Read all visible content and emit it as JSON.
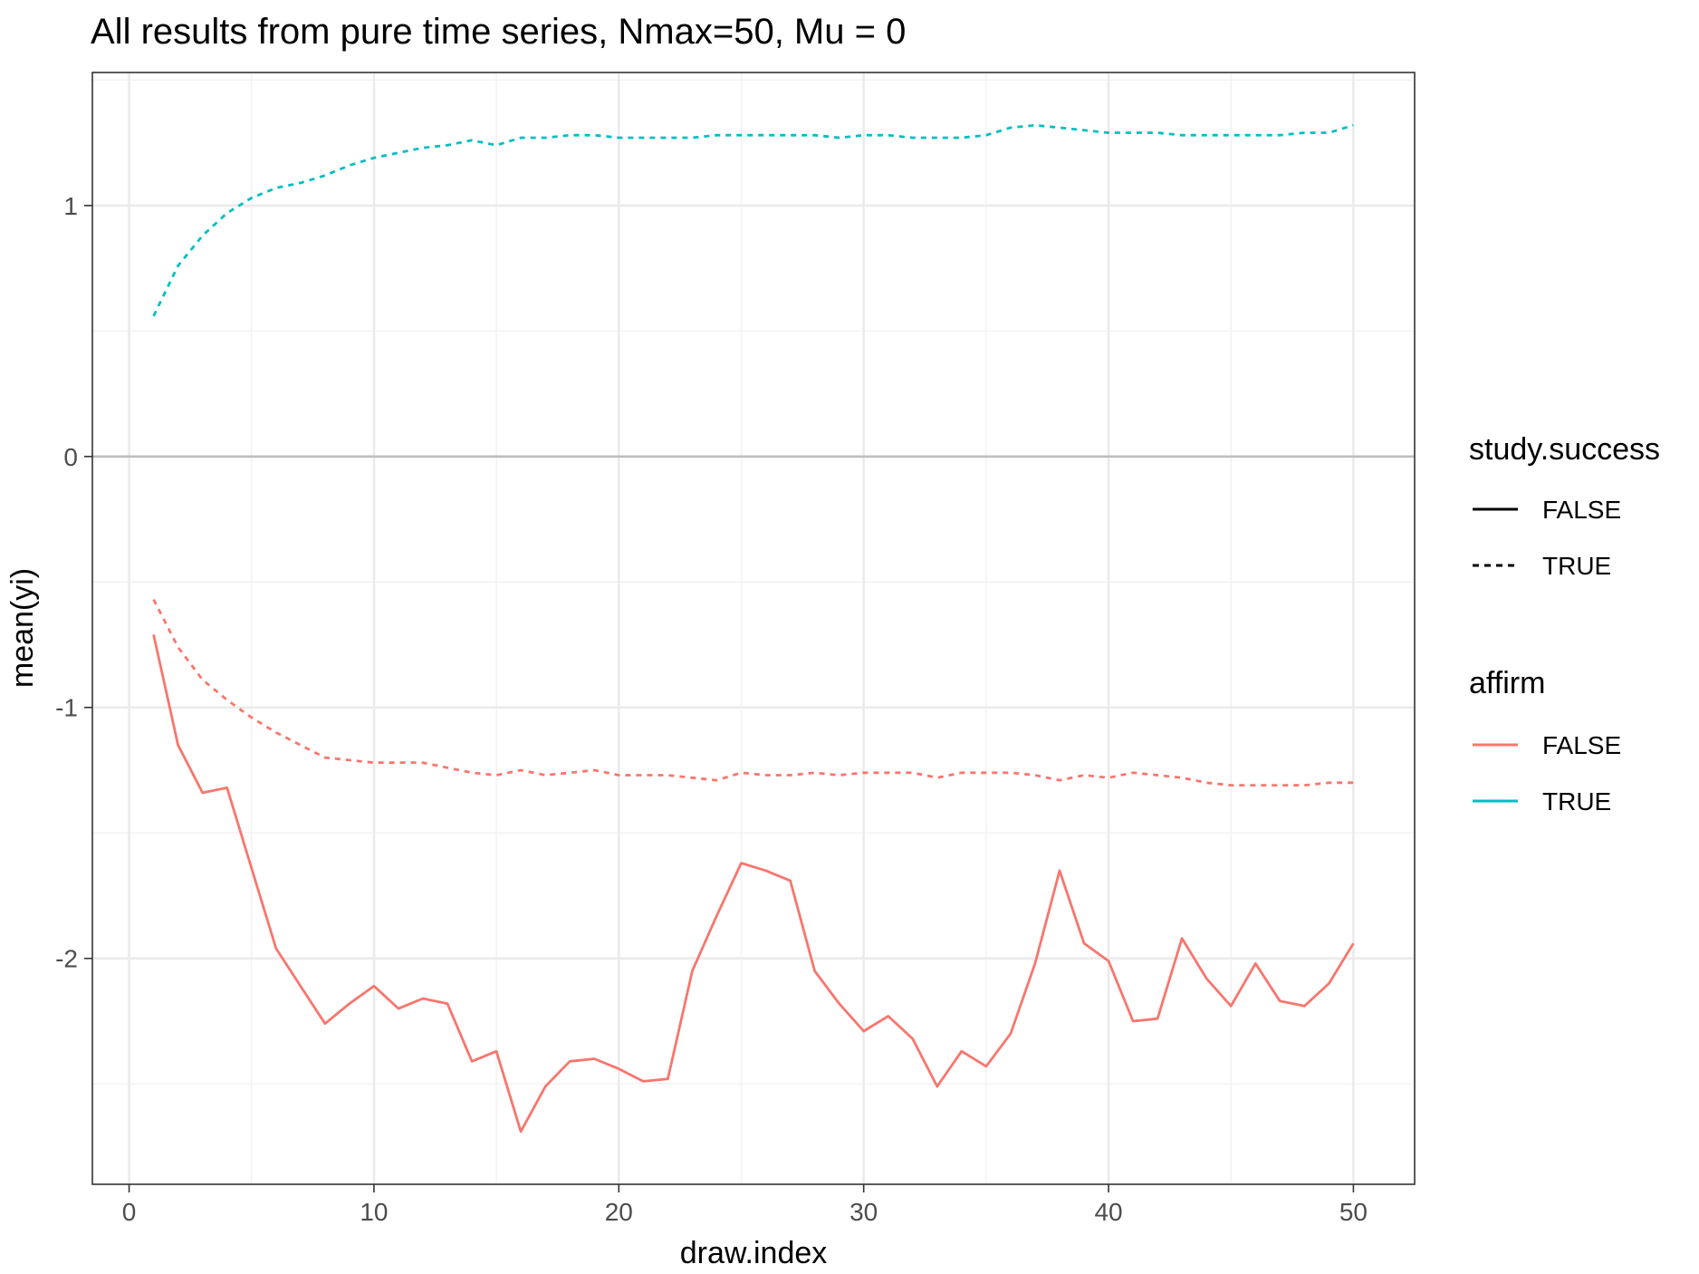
{
  "chart_data": {
    "type": "line",
    "title": "All results from pure time series, Nmax=50, Mu = 0",
    "xlabel": "draw.index",
    "ylabel": "mean(yi)",
    "xlim": [
      -1.5,
      52.5
    ],
    "ylim": [
      -2.9,
      1.53
    ],
    "x_ticks": [
      0,
      10,
      20,
      30,
      40,
      50
    ],
    "y_ticks": [
      -2,
      -1,
      0,
      1
    ],
    "x_tick_labels": [
      "0",
      "10",
      "20",
      "30",
      "40",
      "50"
    ],
    "y_tick_labels": [
      "-2",
      "-1",
      "0",
      "1"
    ],
    "hline": 0,
    "grid": true,
    "legend_position": "right",
    "legends": [
      {
        "title": "study.success",
        "entries": [
          {
            "label": "FALSE",
            "linetype": "solid"
          },
          {
            "label": "TRUE",
            "linetype": "dashed"
          }
        ]
      },
      {
        "title": "affirm",
        "entries": [
          {
            "label": "FALSE",
            "color": "#F8766D"
          },
          {
            "label": "TRUE",
            "color": "#00BFC4"
          }
        ]
      }
    ],
    "series": [
      {
        "affirm": "TRUE",
        "study_success": "TRUE",
        "color": "#00BFC4",
        "linetype": "dashed",
        "x": [
          1,
          2,
          3,
          4,
          5,
          6,
          7,
          8,
          9,
          10,
          11,
          12,
          13,
          14,
          15,
          16,
          17,
          18,
          19,
          20,
          21,
          22,
          23,
          24,
          25,
          26,
          27,
          28,
          29,
          30,
          31,
          32,
          33,
          34,
          35,
          36,
          37,
          38,
          39,
          40,
          41,
          42,
          43,
          44,
          45,
          46,
          47,
          48,
          49,
          50
        ],
        "values": [
          0.56,
          0.76,
          0.88,
          0.97,
          1.03,
          1.07,
          1.09,
          1.12,
          1.16,
          1.19,
          1.21,
          1.23,
          1.24,
          1.26,
          1.24,
          1.27,
          1.27,
          1.28,
          1.28,
          1.27,
          1.27,
          1.27,
          1.27,
          1.28,
          1.28,
          1.28,
          1.28,
          1.28,
          1.27,
          1.28,
          1.28,
          1.27,
          1.27,
          1.27,
          1.28,
          1.31,
          1.32,
          1.31,
          1.3,
          1.29,
          1.29,
          1.29,
          1.28,
          1.28,
          1.28,
          1.28,
          1.28,
          1.29,
          1.29,
          1.32
        ]
      },
      {
        "affirm": "FALSE",
        "study_success": "TRUE",
        "color": "#F8766D",
        "linetype": "dashed",
        "x": [
          1,
          2,
          3,
          4,
          5,
          6,
          7,
          8,
          9,
          10,
          11,
          12,
          13,
          14,
          15,
          16,
          17,
          18,
          19,
          20,
          21,
          22,
          23,
          24,
          25,
          26,
          27,
          28,
          29,
          30,
          31,
          32,
          33,
          34,
          35,
          36,
          37,
          38,
          39,
          40,
          41,
          42,
          43,
          44,
          45,
          46,
          47,
          48,
          49,
          50
        ],
        "values": [
          -0.57,
          -0.76,
          -0.89,
          -0.97,
          -1.04,
          -1.1,
          -1.15,
          -1.2,
          -1.21,
          -1.22,
          -1.22,
          -1.22,
          -1.24,
          -1.26,
          -1.27,
          -1.25,
          -1.27,
          -1.26,
          -1.25,
          -1.27,
          -1.27,
          -1.27,
          -1.28,
          -1.29,
          -1.26,
          -1.27,
          -1.27,
          -1.26,
          -1.27,
          -1.26,
          -1.26,
          -1.26,
          -1.28,
          -1.26,
          -1.26,
          -1.26,
          -1.27,
          -1.29,
          -1.27,
          -1.28,
          -1.26,
          -1.27,
          -1.28,
          -1.3,
          -1.31,
          -1.31,
          -1.31,
          -1.31,
          -1.3,
          -1.3
        ]
      },
      {
        "affirm": "FALSE",
        "study_success": "FALSE",
        "color": "#F8766D",
        "linetype": "solid",
        "x": [
          1,
          2,
          3,
          4,
          5,
          6,
          7,
          8,
          9,
          10,
          11,
          12,
          13,
          14,
          15,
          16,
          17,
          18,
          19,
          20,
          21,
          22,
          23,
          24,
          25,
          26,
          27,
          28,
          29,
          30,
          31,
          32,
          33,
          34,
          35,
          36,
          37,
          38,
          39,
          40,
          41,
          42,
          43,
          44,
          45,
          46,
          47,
          48,
          49,
          50
        ],
        "values": [
          -0.71,
          -1.15,
          -1.34,
          -1.32,
          -1.64,
          -1.96,
          -2.11,
          -2.26,
          -2.18,
          -2.11,
          -2.2,
          -2.16,
          -2.18,
          -2.41,
          -2.37,
          -2.69,
          -2.51,
          -2.41,
          -2.4,
          -2.44,
          -2.49,
          -2.48,
          -2.05,
          -1.83,
          -1.62,
          -1.65,
          -1.69,
          -2.05,
          -2.18,
          -2.29,
          -2.23,
          -2.32,
          -2.51,
          -2.37,
          -2.43,
          -2.3,
          -2.02,
          -1.65,
          -1.94,
          -2.01,
          -2.25,
          -2.24,
          -1.92,
          -2.08,
          -2.19,
          -2.02,
          -2.17,
          -2.19,
          -2.1,
          -1.94
        ]
      }
    ]
  }
}
